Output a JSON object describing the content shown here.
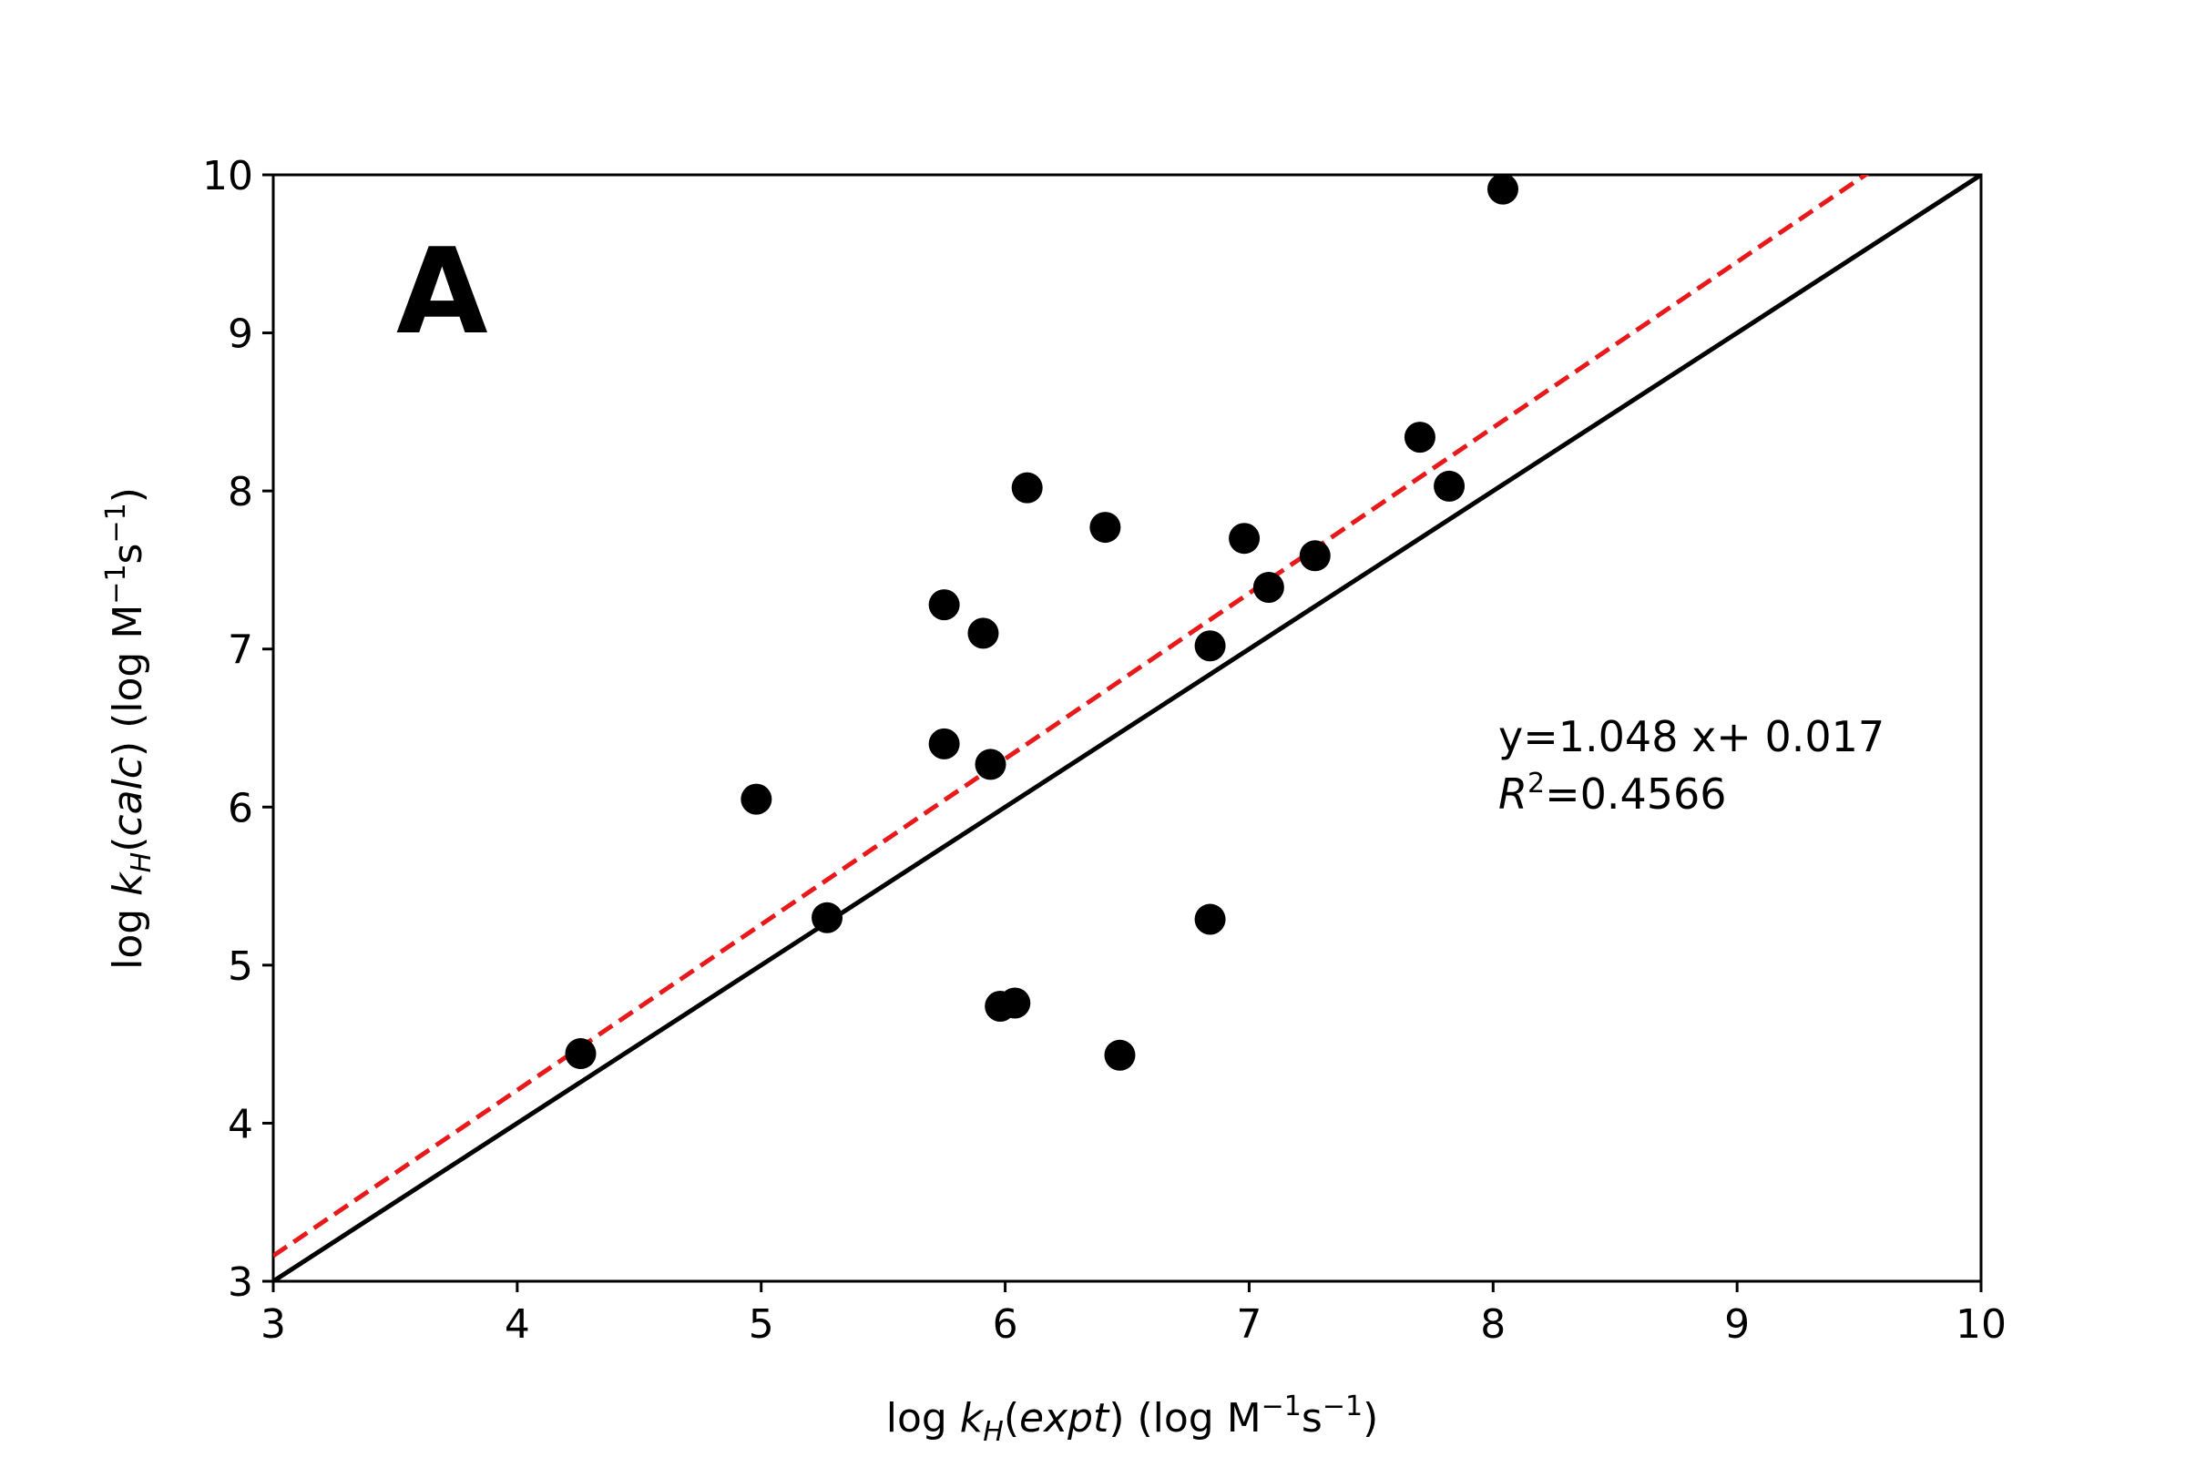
{
  "chart_data": {
    "type": "scatter",
    "panel_label": "A",
    "xlim": [
      3,
      10
    ],
    "ylim": [
      3,
      10
    ],
    "x_ticks": [
      3,
      4,
      5,
      6,
      7,
      8,
      9,
      10
    ],
    "y_ticks": [
      3,
      4,
      5,
      6,
      7,
      8,
      9,
      10
    ],
    "x_tick_labels": [
      "3",
      "4",
      "5",
      "6",
      "7",
      "8",
      "9",
      "10"
    ],
    "y_tick_labels": [
      "3",
      "4",
      "5",
      "6",
      "7",
      "8",
      "9",
      "10"
    ],
    "xlabel": {
      "prefix": "log ",
      "k": "k",
      "sub": "H",
      "open": "(",
      "arg": "expt",
      "close": ")",
      "units_open": " (log M",
      "exp1": "−1",
      "s": "s",
      "exp2": "−1",
      "units_close": ")"
    },
    "ylabel": {
      "prefix": "log ",
      "k": "k",
      "sub": "H",
      "open": "(",
      "arg": "calc",
      "close": ")",
      "units_open": " (log M",
      "exp1": "−1",
      "s": "s",
      "exp2": "−1",
      "units_close": ")"
    },
    "annotation": {
      "equation": "y=1.048 x+ 0.017",
      "r_symbol": "R",
      "r_exp": "2",
      "r_value": "=0.4566"
    },
    "lines": [
      {
        "kind": "identity",
        "slope": 1.0,
        "intercept": 0.0,
        "color": "#000000",
        "style": "solid"
      },
      {
        "kind": "fit",
        "slope": 1.048,
        "intercept": 0.017,
        "color": "#e8191a",
        "style": "dashed"
      }
    ],
    "points": {
      "color": "#000000",
      "x": [
        4.26,
        4.98,
        5.27,
        5.75,
        5.75,
        5.91,
        5.94,
        5.98,
        6.04,
        6.09,
        6.41,
        6.47,
        6.84,
        6.84,
        6.98,
        7.08,
        7.27,
        7.7,
        7.82,
        8.04
      ],
      "y": [
        4.44,
        6.05,
        5.3,
        7.28,
        6.4,
        7.1,
        6.27,
        4.74,
        4.76,
        8.02,
        7.77,
        4.43,
        7.02,
        5.29,
        7.7,
        7.39,
        7.59,
        8.34,
        8.03,
        9.91
      ]
    }
  }
}
